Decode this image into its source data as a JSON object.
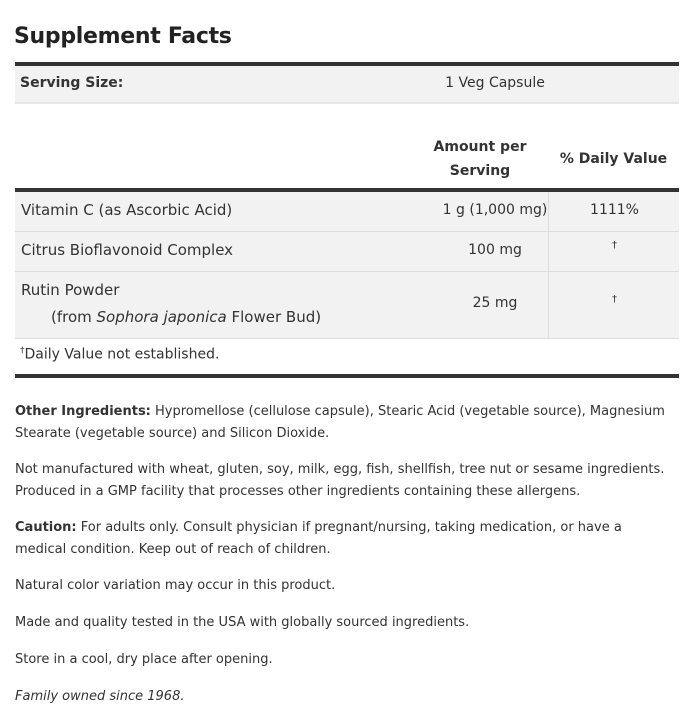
{
  "title": "Supplement Facts",
  "serving": {
    "label": "Serving Size:",
    "value": "1 Veg Capsule"
  },
  "headers": {
    "amount": "Amount per Serving",
    "daily_value": "% Daily Value"
  },
  "rows": [
    {
      "name": "Vitamin C (as Ascorbic Acid)",
      "amount": "1 g (1,000 mg)",
      "dv": "1111%"
    },
    {
      "name": "Citrus Bioflavonoid Complex",
      "amount": "100 mg",
      "dv": "†"
    },
    {
      "name": "Rutin Powder",
      "sub_pre": "(from ",
      "sub_italic": "Sophora japonica",
      "sub_post": " Flower Bud)",
      "amount": "25 mg",
      "dv": "†"
    }
  ],
  "footnote": {
    "mark": "†",
    "text": "Daily Value not established."
  },
  "notes": {
    "other_label": "Other Ingredients:",
    "other_text": " Hypromellose (cellulose capsule), Stearic Acid (vegetable source), Magnesium Stearate (vegetable source) and Silicon Dioxide.",
    "allergen": "Not manufactured with wheat, gluten, soy, milk, egg, fish, shellfish, tree nut or sesame ingredients. Produced in a GMP facility that processes other ingredients containing these allergens.",
    "caution_label": "Caution:",
    "caution_text": " For adults only. Consult physician if pregnant/nursing, taking medication, or have a medical condition. Keep out of reach of children.",
    "color": "Natural color variation may occur in this product.",
    "made": "Made and quality tested in the USA with globally sourced ingredients.",
    "store": "Store in a cool, dry place after opening.",
    "family": "Family owned since 1968."
  }
}
